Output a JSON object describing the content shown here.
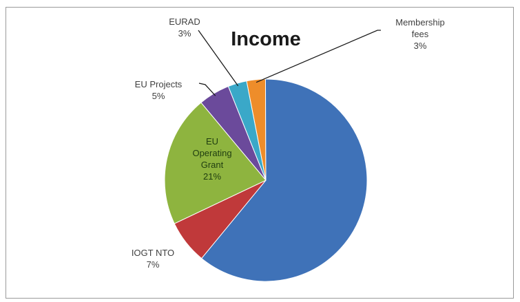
{
  "chart_data": {
    "type": "pie",
    "title": "Income",
    "slices": [
      {
        "label": "",
        "value": 61,
        "percent_label": "",
        "color": "#3f72b8"
      },
      {
        "label": "IOGT NTO",
        "value": 7,
        "percent_label": "7%",
        "color": "#c0393a"
      },
      {
        "label": "EU Operating Grant",
        "label_lines": [
          "EU",
          "Operating",
          "Grant"
        ],
        "value": 21,
        "percent_label": "21%",
        "color": "#8eb43f"
      },
      {
        "label": "EU Projects",
        "value": 5,
        "percent_label": "5%",
        "color": "#6b4a9b"
      },
      {
        "label": "EURAD",
        "value": 3,
        "percent_label": "3%",
        "color": "#3aa8c8"
      },
      {
        "label": "Membership fees",
        "label_lines": [
          "Membership",
          "fees"
        ],
        "value": 3,
        "percent_label": "3%",
        "color": "#ee8d2a"
      }
    ],
    "legend": "none"
  }
}
